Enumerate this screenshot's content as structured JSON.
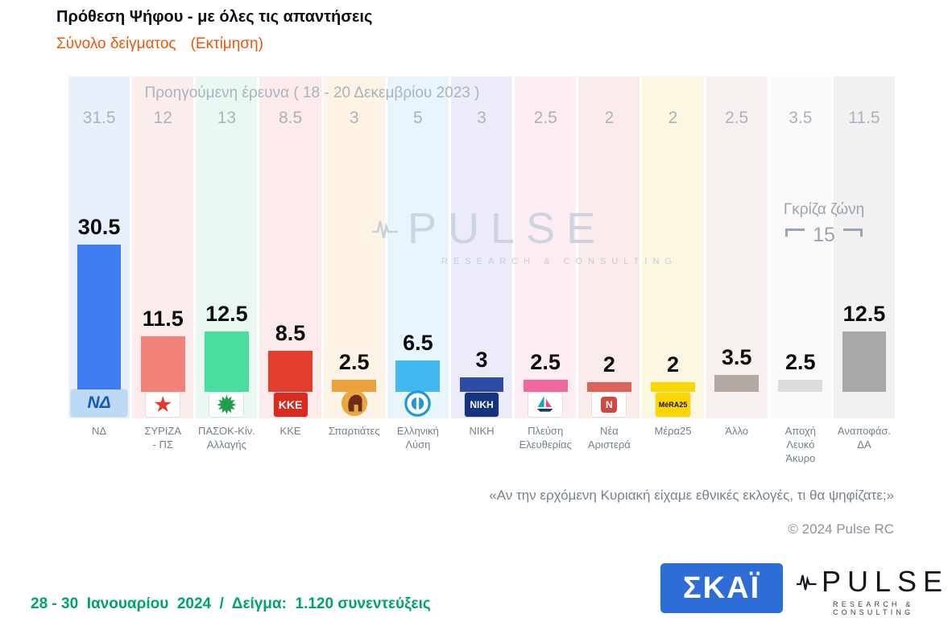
{
  "page": {
    "title": "Πρόθεση Ψήφου - με όλες τις απαντήσεις",
    "subtitle": "Σύνολο δείγματος",
    "subtitle_note": "(Εκτίμηση)",
    "question": "«Αν την ερχόμενη Κυριακή είχαμε εθνικές εκλογές, τι θα ψηφίζατε;»",
    "copyright": "© 2024 Pulse RC",
    "footnote": "28 - 30  Ιανουαρίου  2024  /  Δείγμα:  1.120 συνεντεύξεις",
    "accent_orange": "#e8590c",
    "footnote_color": "#00a36b"
  },
  "watermark": {
    "name": "PULSE",
    "tagline": "RESEARCH & CONSULTING"
  },
  "logos": {
    "skai": {
      "text": "ΣΚΑΪ",
      "bg": "#2e6cd6",
      "fg": "#ffffff"
    },
    "pulse": {
      "name": "PULSE",
      "tagline": "RESEARCH & CONSULTING"
    }
  },
  "chart_data": {
    "type": "bar",
    "title": "Πρόθεση Ψήφου - με όλες τις απαντήσεις",
    "previous_header": "Προηγούμενη έρευνα ( 18 - 20 Δεκεμβρίου 2023 )",
    "unit": "percent",
    "ylim": [
      0,
      35
    ],
    "grid": false,
    "legend_position": "none",
    "gray_zone": {
      "label": "Γκρίζα ζώνη",
      "value": "15"
    },
    "categories": [
      "ΝΔ",
      "ΣΥΡΙΖΑ - ΠΣ",
      "ΠΑΣΟΚ-Κίν. Αλλαγής",
      "ΚΚΕ",
      "Σπαρτιάτες",
      "Ελληνική Λύση",
      "ΝΙΚΗ",
      "Πλεύση Ελευθερίας",
      "Νέα Αριστερά",
      "Μέρα25",
      "Άλλο",
      "Αποχή Λευκό Άκυρο",
      "Αναποφάσ. ΔΑ"
    ],
    "series": [
      {
        "name": "Εκτίμηση (28 - 30 Ιανουαρίου 2024)",
        "values": [
          30.5,
          11.5,
          12.5,
          8.5,
          2.5,
          6.5,
          3,
          2.5,
          2,
          2,
          3.5,
          2.5,
          12.5
        ]
      },
      {
        "name": "Προηγούμενη έρευνα (18 - 20 Δεκεμβρίου 2023)",
        "values": [
          31.5,
          12,
          13,
          8.5,
          3,
          5,
          3,
          2.5,
          2,
          2,
          2.5,
          3.5,
          11.5
        ]
      }
    ],
    "parties": [
      {
        "label": "ΝΔ",
        "bg": "#e8f1fb",
        "bar": "#3e7ef2",
        "logo": {
          "kind": "text",
          "text": "ΝΔ",
          "bg": "#bdd9f6",
          "fg": "#1558bc",
          "size": 21,
          "italic": true,
          "wide": true
        }
      },
      {
        "label": "ΣΥΡΙΖΑ\n- ΠΣ",
        "bg": "#fdecec",
        "bar": "#f2817a",
        "logo": {
          "kind": "star",
          "bg": "#ffffff",
          "fg": "#e23a30"
        }
      },
      {
        "label": "ΠΑΣΟΚ-Κίν.\nΑλλαγής",
        "bg": "#e9f8f1",
        "bar": "#49dda0",
        "logo": {
          "kind": "sun",
          "bg": "#ffffff",
          "fg": "#1f9e4d"
        }
      },
      {
        "label": "ΚΚΕ",
        "bg": "#fcebea",
        "bar": "#e33d2e",
        "logo": {
          "kind": "text",
          "text": "ΚΚΕ",
          "bg": "#d92b1f",
          "fg": "#ffffff",
          "size": 14,
          "bold": true
        }
      },
      {
        "label": "Σπαρτιάτες",
        "bg": "#fdf3e4",
        "bar": "#eda13c",
        "logo": {
          "kind": "helmet",
          "bg": "#e9a83b",
          "fg": "#6f2b1a"
        }
      },
      {
        "label": "Ελληνική\nΛύση",
        "bg": "#e8f5fd",
        "bar": "#43b8ee",
        "logo": {
          "kind": "ring",
          "bg": "#ffffff",
          "fg": "#2397d3"
        }
      },
      {
        "label": "ΝΙΚΗ",
        "bg": "#ebecf8",
        "bar": "#2e4ca6",
        "logo": {
          "kind": "text",
          "text": "ΝΙΚΗ",
          "bg": "#16337f",
          "fg": "#ffffff",
          "size": 12,
          "bold": true
        }
      },
      {
        "label": "Πλεύση\nΕλευθερίας",
        "bg": "#fdedf3",
        "bar": "#ef6a9c",
        "logo": {
          "kind": "sail",
          "bg": "#ffffff",
          "fg": "#18a7b5"
        }
      },
      {
        "label": "Νέα\nΑριστερά",
        "bg": "#fbeceb",
        "bar": "#dc635a",
        "logo": {
          "kind": "badge",
          "text": "Ν",
          "bg": "#ffffff",
          "fg": "#d14a41"
        }
      },
      {
        "label": "Μέρα25",
        "bg": "#fcf7e1",
        "bar": "#f8d703",
        "logo": {
          "kind": "text",
          "text": "MéRA25",
          "bg": "#ffd500",
          "fg": "#141414",
          "size": 9,
          "bold": true
        }
      },
      {
        "label": "Άλλο",
        "bg": "#f6f1ef",
        "bar": "#b3a7a2",
        "logo": {
          "kind": "none"
        }
      },
      {
        "label": "Αποχή\nΛευκό\nΆκυρο",
        "bg": "#fbfafa",
        "bar": "#dcdcdc",
        "logo": {
          "kind": "none"
        }
      },
      {
        "label": "Αναποφάσ.\nΔΑ",
        "bg": "#f1f1f1",
        "bar": "#a8a8a8",
        "logo": {
          "kind": "none"
        }
      }
    ]
  }
}
